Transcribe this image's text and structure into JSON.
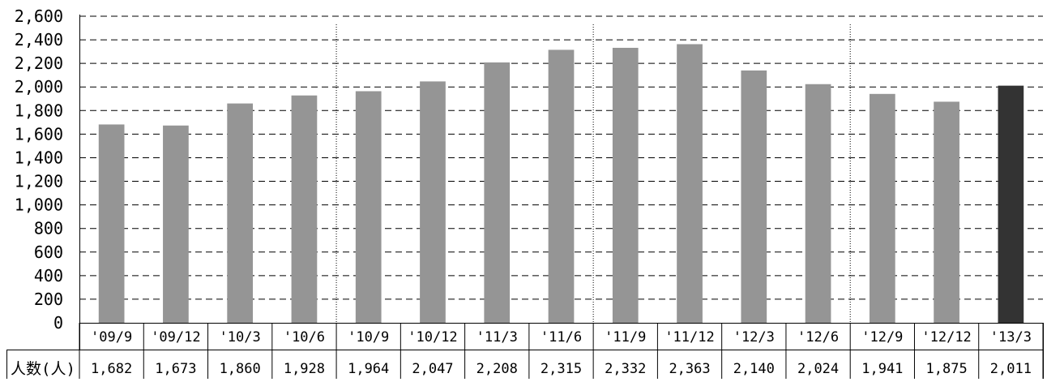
{
  "chart_data": {
    "type": "bar",
    "title": "",
    "xlabel": "",
    "ylabel": "",
    "ylim": [
      0,
      2600
    ],
    "yticks": [
      0,
      200,
      400,
      600,
      800,
      1000,
      1200,
      1400,
      1600,
      1800,
      2000,
      2200,
      2400,
      2600
    ],
    "ytick_labels": [
      "0",
      "200",
      "400",
      "600",
      "800",
      "1,000",
      "1,200",
      "1,400",
      "1,600",
      "1,800",
      "2,000",
      "2,200",
      "2,400",
      "2,600"
    ],
    "grid": "horizontal dashed",
    "categories": [
      "'09/9",
      "'09/12",
      "'10/3",
      "'10/6",
      "'10/9",
      "'10/12",
      "'11/3",
      "'11/6",
      "'11/9",
      "'11/12",
      "'12/3",
      "'12/6",
      "'12/9",
      "'12/12",
      "'13/3"
    ],
    "series": [
      {
        "name": "人数(人)",
        "values": [
          1682,
          1673,
          1860,
          1928,
          1964,
          2047,
          2208,
          2315,
          2332,
          2363,
          2140,
          2024,
          1941,
          1875,
          2011
        ],
        "value_labels": [
          "1,682",
          "1,673",
          "1,860",
          "1,928",
          "1,964",
          "2,047",
          "2,208",
          "2,315",
          "2,332",
          "2,363",
          "2,140",
          "2,024",
          "1,941",
          "1,875",
          "2,011"
        ]
      }
    ],
    "highlighted_category": "'13/3",
    "year_dividers_after": [
      "'10/6",
      "'11/6",
      "'12/6"
    ],
    "colors": {
      "bar": "#959595",
      "highlight": "#333333",
      "grid": "#000000"
    }
  }
}
